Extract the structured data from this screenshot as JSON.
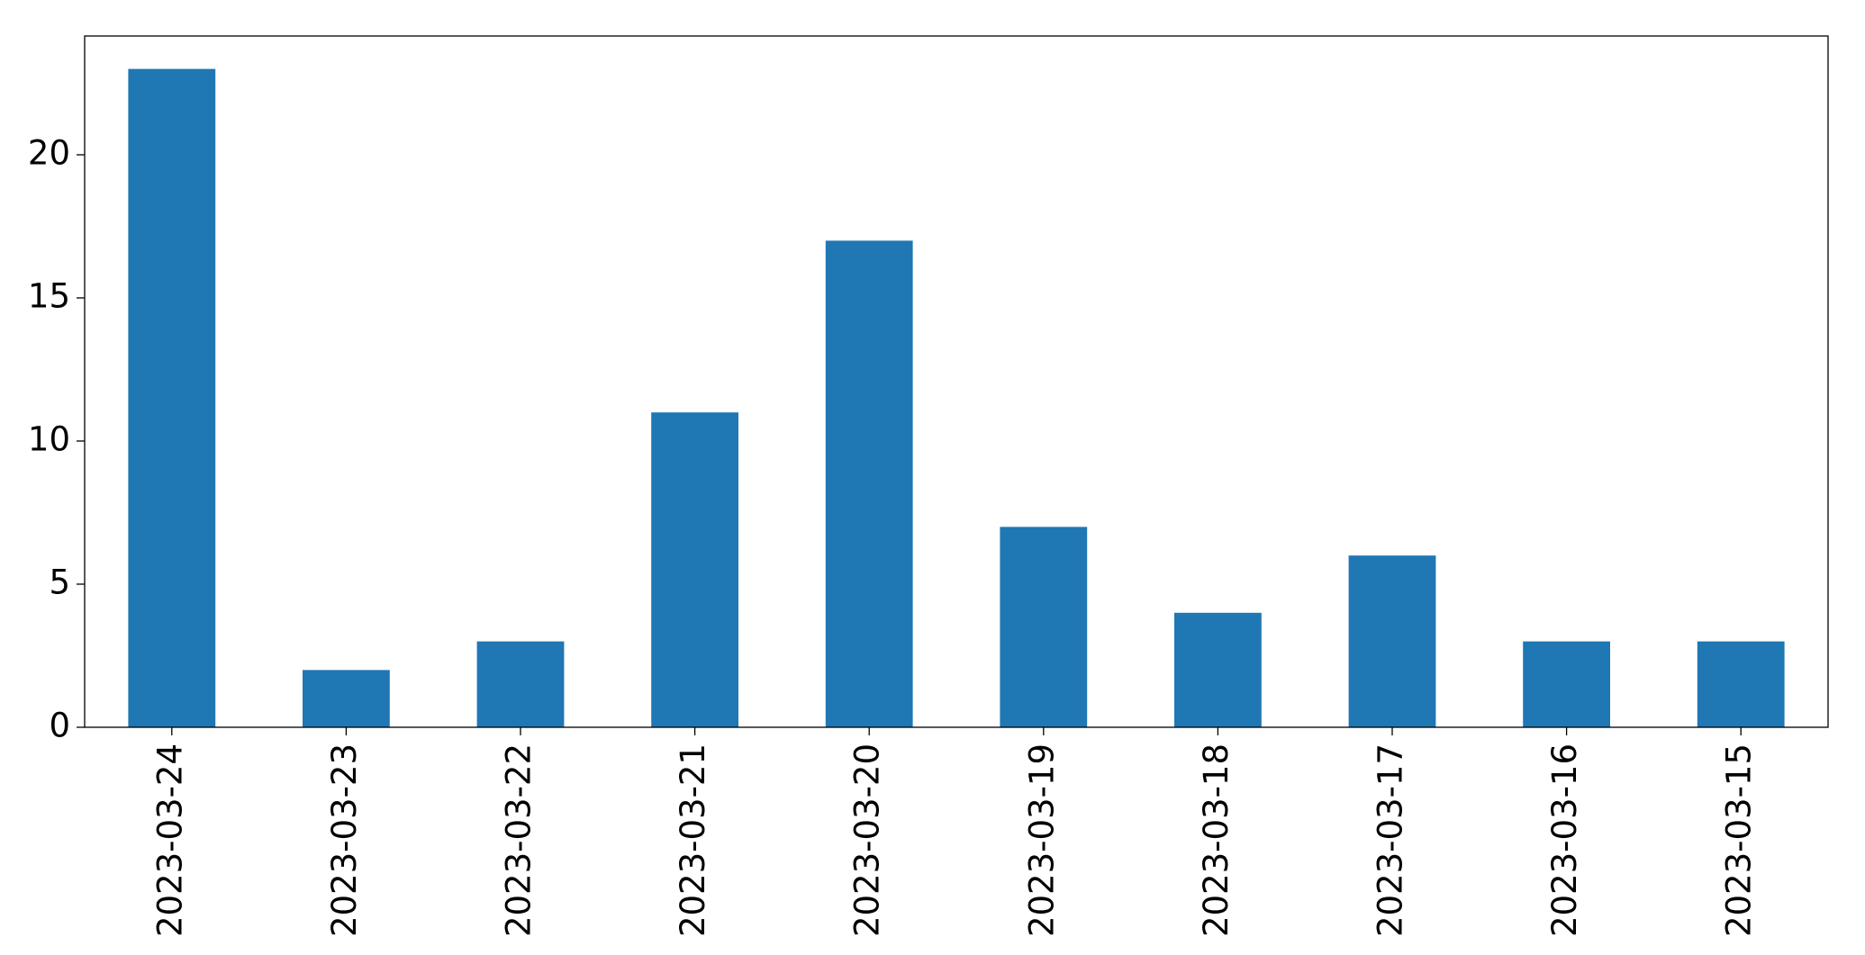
{
  "chart_data": {
    "type": "bar",
    "categories": [
      "2023-03-24",
      "2023-03-23",
      "2023-03-22",
      "2023-03-21",
      "2023-03-20",
      "2023-03-19",
      "2023-03-18",
      "2023-03-17",
      "2023-03-16",
      "2023-03-15"
    ],
    "values": [
      23,
      2,
      3,
      11,
      17,
      7,
      4,
      6,
      3,
      3
    ],
    "color": "#1f77b4",
    "ylim": [
      0,
      24.15
    ],
    "yticks": [
      0,
      5,
      10,
      15,
      20
    ],
    "grid": false
  }
}
